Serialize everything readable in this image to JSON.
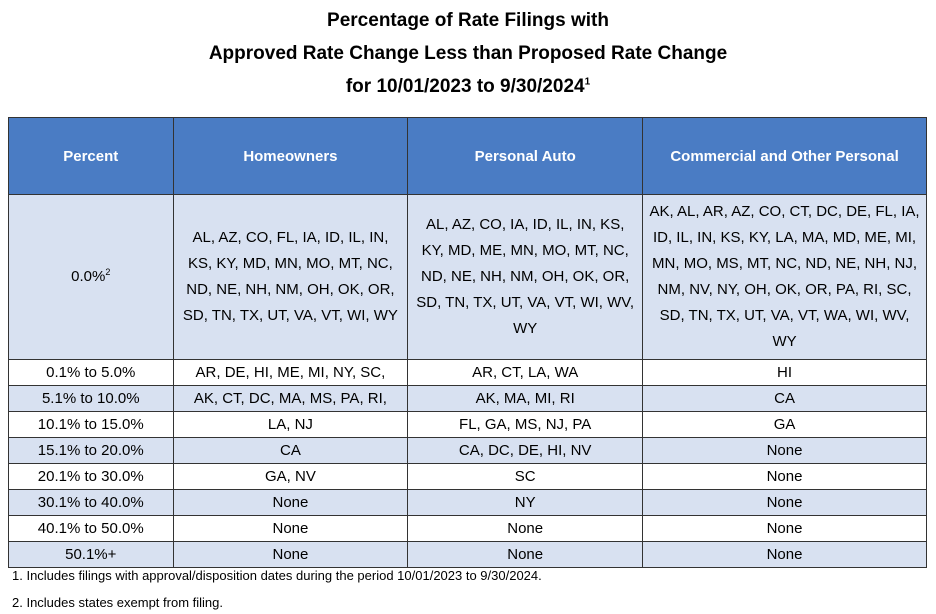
{
  "title": {
    "line1": "Percentage of Rate Filings with",
    "line2": "Approved Rate Change Less than Proposed Rate Change",
    "line3": "for 10/01/2023 to 9/30/2024",
    "line3_sup": "1"
  },
  "table": {
    "headers": [
      "Percent",
      "Homeowners",
      "Personal Auto",
      "Commercial and Other Personal"
    ],
    "rows": [
      {
        "percent": "0.0%",
        "percent_sup": "2",
        "homeowners": "AL, AZ, CO, FL, IA, ID, IL, IN, KS, KY, MD, MN, MO, MT, NC, ND, NE, NH, NM, OH, OK, OR, SD, TN, TX, UT, VA, VT, WI, WY",
        "personal_auto": "AL, AZ, CO, IA, ID, IL, IN, KS, KY, MD, ME, MN, MO, MT, NC, ND, NE, NH, NM, OH, OK, OR, SD, TN, TX, UT, VA, VT, WI, WV, WY",
        "commercial": "AK, AL, AR, AZ, CO, CT, DC, DE, FL, IA, ID, IL, IN, KS, KY, LA, MA, MD, ME, MI, MN, MO, MS, MT, NC, ND, NE, NH, NJ, NM, NV, NY, OH, OK, OR, PA, RI, SC, SD, TN, TX, UT, VA, VT, WA, WI, WV, WY"
      },
      {
        "percent": "0.1% to 5.0%",
        "homeowners": "AR, DE, HI, ME, MI, NY, SC,",
        "personal_auto": "AR, CT, LA, WA",
        "commercial": "HI"
      },
      {
        "percent": "5.1% to 10.0%",
        "homeowners": "AK, CT, DC, MA, MS, PA, RI,",
        "personal_auto": "AK, MA, MI, RI",
        "commercial": "CA"
      },
      {
        "percent": "10.1% to 15.0%",
        "homeowners": "LA, NJ",
        "personal_auto": "FL, GA, MS, NJ, PA",
        "commercial": "GA"
      },
      {
        "percent": "15.1% to 20.0%",
        "homeowners": "CA",
        "personal_auto": "CA, DC, DE, HI, NV",
        "commercial": "None"
      },
      {
        "percent": "20.1% to 30.0%",
        "homeowners": "GA, NV",
        "personal_auto": "SC",
        "commercial": "None"
      },
      {
        "percent": "30.1% to 40.0%",
        "homeowners": "None",
        "personal_auto": "NY",
        "commercial": "None"
      },
      {
        "percent": "40.1% to 50.0%",
        "homeowners": "None",
        "personal_auto": "None",
        "commercial": "None"
      },
      {
        "percent": "50.1%+",
        "homeowners": "None",
        "personal_auto": "None",
        "commercial": "None"
      }
    ]
  },
  "footnotes": [
    "1. Includes filings with approval/disposition dates during the period 10/01/2023 to 9/30/2024.",
    "2. Includes states exempt from filing."
  ],
  "colors": {
    "header_bg": "#4a7cc4",
    "alt_row_bg": "#d8e1f1",
    "header_text": "#ffffff"
  }
}
